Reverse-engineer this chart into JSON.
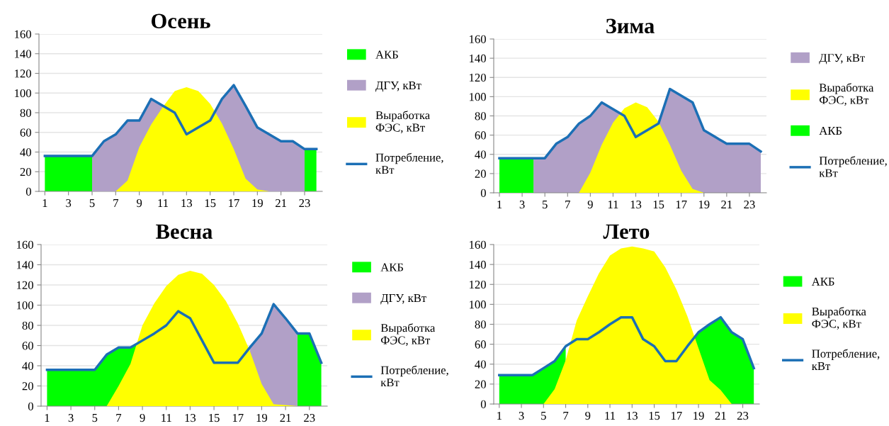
{
  "chart_data": [
    {
      "type": "area",
      "title": "Осень",
      "xlim": [
        0.5,
        24.5
      ],
      "xticks": [
        1,
        3,
        5,
        7,
        9,
        11,
        13,
        15,
        17,
        19,
        21,
        23
      ],
      "ylim": [
        0,
        160
      ],
      "yticks": [
        0,
        20,
        40,
        60,
        80,
        100,
        120,
        140,
        160
      ],
      "grid": "y",
      "legend": "right",
      "series": [
        {
          "name": "АКБ",
          "color": "#00ff00",
          "x": [
            1,
            2,
            3,
            4,
            5,
            23,
            24
          ],
          "values": [
            36,
            36,
            36,
            36,
            36,
            43,
            43
          ]
        },
        {
          "name": "ДГУ, кВт",
          "color": "#b1a0c7",
          "x": [
            5,
            6,
            7,
            8,
            9,
            10,
            11,
            12,
            15.4,
            16,
            17,
            18,
            19,
            20,
            21,
            22,
            23
          ],
          "values": [
            36,
            51,
            58,
            72,
            72,
            94,
            87,
            null,
            81,
            94,
            108,
            87,
            65,
            58,
            51,
            51,
            43
          ]
        },
        {
          "name": "Выработка\nФЭС, кВт",
          "color": "#ffff00",
          "x": [
            7,
            8,
            9,
            10,
            11,
            12,
            13,
            14,
            15,
            16,
            17,
            18,
            19,
            20
          ],
          "values": [
            0,
            11,
            45,
            68,
            86,
            102,
            106,
            102,
            89,
            69,
            43,
            13,
            2,
            0
          ]
        },
        {
          "name": "Потребление,\nкВт",
          "type": "line",
          "color": "#1b6fb5",
          "x": [
            1,
            2,
            3,
            4,
            5,
            6,
            7,
            8,
            9,
            10,
            11,
            12,
            13,
            14,
            15,
            16,
            17,
            18,
            19,
            20,
            21,
            22,
            23,
            24
          ],
          "values": [
            36,
            36,
            36,
            36,
            36,
            51,
            58,
            72,
            72,
            94,
            87,
            80,
            58,
            65,
            72,
            94,
            108,
            87,
            65,
            58,
            51,
            51,
            43,
            43
          ]
        }
      ]
    },
    {
      "type": "area",
      "title": "Зима",
      "xlim": [
        0.5,
        24.5
      ],
      "xticks": [
        1,
        3,
        5,
        7,
        9,
        11,
        13,
        15,
        17,
        19,
        21,
        23
      ],
      "ylim": [
        0,
        160
      ],
      "yticks": [
        0,
        20,
        40,
        60,
        80,
        100,
        120,
        140,
        160
      ],
      "grid": "y",
      "legend": "right",
      "series": [
        {
          "name": "ДГУ, кВт",
          "color": "#b1a0c7",
          "x": [
            4,
            5,
            6,
            7,
            8,
            9,
            10,
            11,
            11.6,
            13,
            15,
            16,
            17,
            18,
            19,
            20,
            21,
            22,
            23,
            24
          ],
          "values": [
            36,
            36,
            51,
            58,
            72,
            80,
            94,
            87,
            83,
            null,
            72,
            108,
            101,
            94,
            65,
            58,
            51,
            51,
            51,
            43
          ]
        },
        {
          "name": "Выработка\nФЭС, кВт",
          "color": "#ffff00",
          "x": [
            8,
            9,
            10,
            11,
            12,
            13,
            14,
            15,
            16,
            17,
            18,
            19
          ],
          "values": [
            0,
            21,
            50,
            73,
            88,
            94,
            89,
            74,
            50,
            23,
            4,
            0
          ]
        },
        {
          "name": "АКБ",
          "color": "#00ff00",
          "x": [
            1,
            2,
            3,
            4
          ],
          "values": [
            36,
            36,
            36,
            36
          ]
        },
        {
          "name": "Потребление,\nкВт",
          "type": "line",
          "color": "#1b6fb5",
          "x": [
            1,
            2,
            3,
            4,
            5,
            6,
            7,
            8,
            9,
            10,
            11,
            12,
            13,
            14,
            15,
            16,
            17,
            18,
            19,
            20,
            21,
            22,
            23,
            24
          ],
          "values": [
            36,
            36,
            36,
            36,
            36,
            51,
            58,
            72,
            80,
            94,
            87,
            80,
            58,
            65,
            72,
            108,
            101,
            94,
            65,
            58,
            51,
            51,
            51,
            43
          ]
        }
      ]
    },
    {
      "type": "area",
      "title": "Весна",
      "xlim": [
        0.5,
        24.5
      ],
      "xticks": [
        1,
        3,
        5,
        7,
        9,
        11,
        13,
        15,
        17,
        19,
        21,
        23
      ],
      "ylim": [
        0,
        160
      ],
      "yticks": [
        0,
        20,
        40,
        60,
        80,
        100,
        120,
        140,
        160
      ],
      "grid": "y",
      "legend": "right",
      "series": [
        {
          "name": "АКБ",
          "color": "#00ff00",
          "x": [
            1,
            2,
            3,
            4,
            5,
            6,
            7,
            8,
            8.5,
            9,
            22,
            23,
            24
          ],
          "values": [
            36,
            36,
            36,
            36,
            36,
            51,
            58,
            58,
            62,
            null,
            72,
            72,
            43
          ]
        },
        {
          "name": "ДГУ, кВт",
          "color": "#b1a0c7",
          "x": [
            18,
            19,
            20,
            21,
            22
          ],
          "values": [
            58,
            72,
            101,
            87,
            72
          ]
        },
        {
          "name": "Выработка\nФЭС, кВт",
          "color": "#ffff00",
          "x": [
            6,
            7,
            8,
            9,
            10,
            11,
            12,
            13,
            14,
            15,
            16,
            17,
            18,
            19,
            20,
            21,
            22
          ],
          "values": [
            0,
            20,
            42,
            80,
            102,
            119,
            130,
            134,
            131,
            120,
            104,
            82,
            55,
            22,
            2,
            1,
            0
          ]
        },
        {
          "name": "Потребление,\nкВт",
          "type": "line",
          "color": "#1b6fb5",
          "x": [
            1,
            2,
            3,
            4,
            5,
            6,
            7,
            8,
            9,
            10,
            11,
            12,
            13,
            14,
            15,
            16,
            17,
            18,
            19,
            20,
            21,
            22,
            23,
            24
          ],
          "values": [
            36,
            36,
            36,
            36,
            36,
            51,
            58,
            58,
            65,
            72,
            80,
            94,
            87,
            65,
            43,
            43,
            43,
            58,
            72,
            101,
            87,
            72,
            72,
            43
          ]
        }
      ]
    },
    {
      "type": "area",
      "title": "Лето",
      "xlim": [
        0.5,
        24.5
      ],
      "xticks": [
        1,
        3,
        5,
        7,
        9,
        11,
        13,
        15,
        17,
        19,
        21,
        23
      ],
      "ylim": [
        0,
        160
      ],
      "yticks": [
        0,
        20,
        40,
        60,
        80,
        100,
        120,
        140,
        160
      ],
      "grid": "y",
      "legend": "right",
      "series": [
        {
          "name": "АКБ",
          "color": "#00ff00",
          "x": [
            1,
            2,
            3,
            4,
            5,
            6,
            7,
            8,
            18.6,
            19,
            20,
            21,
            22,
            23,
            24
          ],
          "values": [
            29,
            29,
            29,
            29,
            36,
            43,
            58,
            null,
            67,
            72,
            80,
            87,
            72,
            65,
            36
          ]
        },
        {
          "name": "Выработка\nФЭС, кВт",
          "color": "#ffff00",
          "x": [
            5,
            6,
            7,
            8,
            9,
            10,
            11,
            12,
            13,
            14,
            15,
            16,
            17,
            18,
            19,
            20,
            21,
            22
          ],
          "values": [
            0,
            15,
            44,
            84,
            108,
            131,
            149,
            156,
            158,
            156,
            153,
            137,
            115,
            88,
            56,
            24,
            14,
            0
          ]
        },
        {
          "name": "Потребление,\nкВт",
          "type": "line",
          "color": "#1b6fb5",
          "x": [
            1,
            2,
            3,
            4,
            5,
            6,
            7,
            8,
            9,
            10,
            11,
            12,
            13,
            14,
            15,
            16,
            17,
            18,
            19,
            20,
            21,
            22,
            23,
            24
          ],
          "values": [
            29,
            29,
            29,
            29,
            36,
            43,
            58,
            65,
            65,
            72,
            80,
            87,
            87,
            65,
            58,
            43,
            43,
            58,
            72,
            80,
            87,
            72,
            65,
            36
          ]
        }
      ]
    }
  ]
}
